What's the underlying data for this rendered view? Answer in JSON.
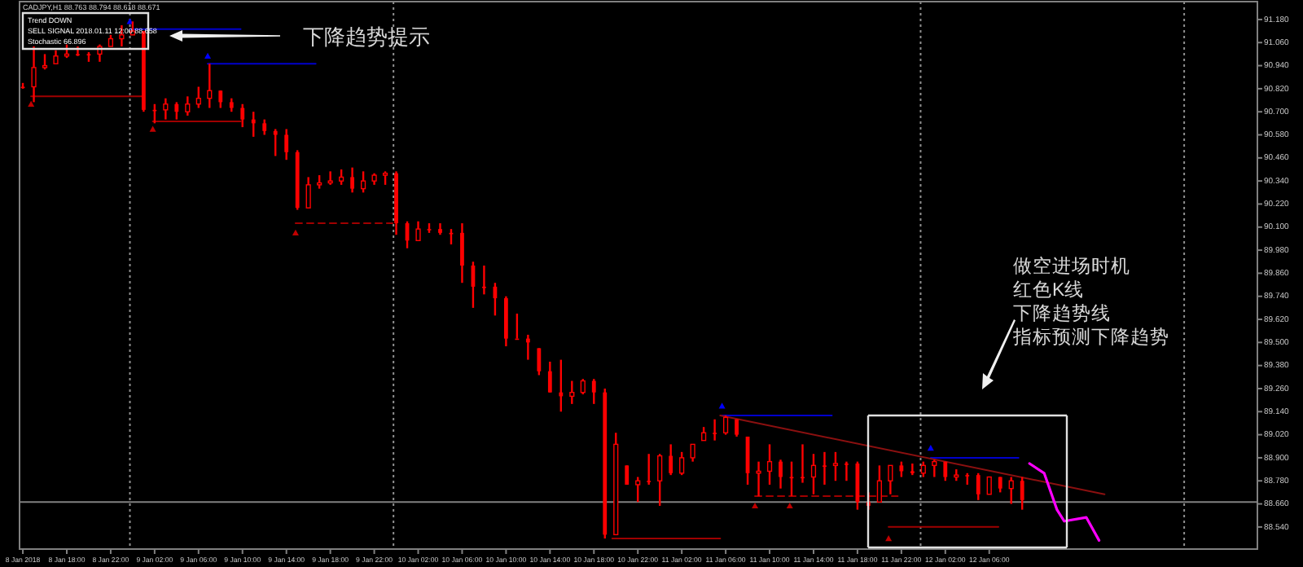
{
  "chart_data": {
    "type": "candlestick",
    "title": "CADJPY,H1 88.763 88.794 88.618 88.671",
    "color": "#ff0000",
    "x": [
      "2018-01-08T14:00",
      "2018-01-08T15:00",
      "2018-01-08T16:00",
      "2018-01-08T17:00",
      "2018-01-08T18:00",
      "2018-01-08T19:00",
      "2018-01-08T20:00",
      "2018-01-08T21:00",
      "2018-01-08T22:00",
      "2018-01-08T23:00",
      "2018-01-09T00:00",
      "2018-01-09T01:00",
      "2018-01-09T02:00",
      "2018-01-09T03:00",
      "2018-01-09T04:00",
      "2018-01-09T05:00",
      "2018-01-09T06:00",
      "2018-01-09T07:00",
      "2018-01-09T08:00",
      "2018-01-09T09:00",
      "2018-01-09T10:00",
      "2018-01-09T11:00",
      "2018-01-09T12:00",
      "2018-01-09T13:00",
      "2018-01-09T14:00",
      "2018-01-09T15:00",
      "2018-01-09T16:00",
      "2018-01-09T17:00",
      "2018-01-09T18:00",
      "2018-01-09T19:00",
      "2018-01-09T20:00",
      "2018-01-09T21:00",
      "2018-01-09T22:00",
      "2018-01-09T23:00",
      "2018-01-10T00:00",
      "2018-01-10T01:00",
      "2018-01-10T02:00",
      "2018-01-10T03:00",
      "2018-01-10T04:00",
      "2018-01-10T05:00",
      "2018-01-10T06:00",
      "2018-01-10T07:00",
      "2018-01-10T08:00",
      "2018-01-10T09:00",
      "2018-01-10T10:00",
      "2018-01-10T11:00",
      "2018-01-10T12:00",
      "2018-01-10T13:00",
      "2018-01-10T14:00",
      "2018-01-10T15:00",
      "2018-01-10T16:00",
      "2018-01-10T17:00",
      "2018-01-10T18:00",
      "2018-01-10T19:00",
      "2018-01-10T20:00",
      "2018-01-10T21:00",
      "2018-01-10T22:00",
      "2018-01-10T23:00",
      "2018-01-11T00:00",
      "2018-01-11T01:00",
      "2018-01-11T02:00",
      "2018-01-11T03:00",
      "2018-01-11T04:00",
      "2018-01-11T05:00",
      "2018-01-11T06:00",
      "2018-01-11T07:00",
      "2018-01-11T08:00",
      "2018-01-11T09:00",
      "2018-01-11T10:00",
      "2018-01-11T11:00",
      "2018-01-11T12:00",
      "2018-01-11T13:00",
      "2018-01-11T14:00",
      "2018-01-11T15:00",
      "2018-01-11T16:00",
      "2018-01-11T17:00",
      "2018-01-11T18:00",
      "2018-01-11T19:00",
      "2018-01-11T20:00",
      "2018-01-11T21:00",
      "2018-01-11T22:00",
      "2018-01-11T23:00",
      "2018-01-12T00:00",
      "2018-01-12T01:00",
      "2018-01-12T02:00",
      "2018-01-12T03:00",
      "2018-01-12T04:00",
      "2018-01-12T05:00",
      "2018-01-12T06:00",
      "2018-01-12T07:00",
      "2018-01-12T08:00",
      "2018-01-12T09:00"
    ],
    "ohlc": [
      [
        90.83,
        90.85,
        90.82,
        90.83
      ],
      [
        90.83,
        91.04,
        90.75,
        90.93
      ],
      [
        90.93,
        91.0,
        90.92,
        90.94
      ],
      [
        90.95,
        91.02,
        90.95,
        90.99
      ],
      [
        90.99,
        91.05,
        90.98,
        91.0
      ],
      [
        91.0,
        91.04,
        90.99,
        91.0
      ],
      [
        91.0,
        91.01,
        90.96,
        91.0
      ],
      [
        91.0,
        91.05,
        90.96,
        91.04
      ],
      [
        91.04,
        91.1,
        91.04,
        91.08
      ],
      [
        91.08,
        91.15,
        91.04,
        91.1
      ],
      [
        91.1,
        91.17,
        91.1,
        91.12
      ],
      [
        91.12,
        91.12,
        90.7,
        90.71
      ],
      [
        90.71,
        90.74,
        90.64,
        90.71
      ],
      [
        90.71,
        90.77,
        90.66,
        90.74
      ],
      [
        90.74,
        90.75,
        90.66,
        90.7
      ],
      [
        90.7,
        90.78,
        90.68,
        90.74
      ],
      [
        90.74,
        90.83,
        90.72,
        90.77
      ],
      [
        90.77,
        90.95,
        90.72,
        90.81
      ],
      [
        90.81,
        90.81,
        90.72,
        90.75
      ],
      [
        90.75,
        90.77,
        90.7,
        90.72
      ],
      [
        90.72,
        90.74,
        90.62,
        90.66
      ],
      [
        90.66,
        90.7,
        90.57,
        90.64
      ],
      [
        90.64,
        90.66,
        90.58,
        90.6
      ],
      [
        90.6,
        90.61,
        90.47,
        90.58
      ],
      [
        90.58,
        90.61,
        90.45,
        90.49
      ],
      [
        90.49,
        90.5,
        90.19,
        90.2
      ],
      [
        90.2,
        90.36,
        90.2,
        90.32
      ],
      [
        90.32,
        90.37,
        90.3,
        90.33
      ],
      [
        90.33,
        90.39,
        90.32,
        90.34
      ],
      [
        90.34,
        90.4,
        90.32,
        90.36
      ],
      [
        90.36,
        90.41,
        90.28,
        90.3
      ],
      [
        90.3,
        90.39,
        90.28,
        90.34
      ],
      [
        90.34,
        90.38,
        90.32,
        90.37
      ],
      [
        90.37,
        90.39,
        90.32,
        90.38
      ],
      [
        90.38,
        90.39,
        90.06,
        90.12
      ],
      [
        90.12,
        90.13,
        89.99,
        90.03
      ],
      [
        90.03,
        90.13,
        90.03,
        90.09
      ],
      [
        90.09,
        90.12,
        90.07,
        90.09
      ],
      [
        90.09,
        90.12,
        90.06,
        90.07
      ],
      [
        90.07,
        90.09,
        90.01,
        90.07
      ],
      [
        90.07,
        90.12,
        89.81,
        89.9
      ],
      [
        89.9,
        89.92,
        89.68,
        89.79
      ],
      [
        89.79,
        89.9,
        89.75,
        89.79
      ],
      [
        89.79,
        89.81,
        89.64,
        89.73
      ],
      [
        89.73,
        89.74,
        89.48,
        89.52
      ],
      [
        89.52,
        89.65,
        89.52,
        89.52
      ],
      [
        89.52,
        89.54,
        89.41,
        89.5
      ],
      [
        89.47,
        89.47,
        89.33,
        89.35
      ],
      [
        89.35,
        89.4,
        89.24,
        89.24
      ],
      [
        89.24,
        89.41,
        89.14,
        89.22
      ],
      [
        89.22,
        89.3,
        89.18,
        89.24
      ],
      [
        89.24,
        89.31,
        89.23,
        89.3
      ],
      [
        89.3,
        89.31,
        89.18,
        89.24
      ],
      [
        89.24,
        89.26,
        88.48,
        88.5
      ],
      [
        88.5,
        89.03,
        88.5,
        88.97
      ],
      [
        88.86,
        88.86,
        88.76,
        88.76
      ],
      [
        88.76,
        88.8,
        88.67,
        88.78
      ],
      [
        88.78,
        88.92,
        88.76,
        88.78
      ],
      [
        88.78,
        88.92,
        88.65,
        88.91
      ],
      [
        88.91,
        88.97,
        88.81,
        88.82
      ],
      [
        88.82,
        88.93,
        88.81,
        88.9
      ],
      [
        88.9,
        88.97,
        88.88,
        88.97
      ],
      [
        88.99,
        89.06,
        88.99,
        89.03
      ],
      [
        89.03,
        89.1,
        88.99,
        89.03
      ],
      [
        89.03,
        89.12,
        89.02,
        89.11
      ],
      [
        89.1,
        89.1,
        89.01,
        89.02
      ],
      [
        89.01,
        89.01,
        88.76,
        88.82
      ],
      [
        88.82,
        88.88,
        88.7,
        88.83
      ],
      [
        88.83,
        88.97,
        88.76,
        88.88
      ],
      [
        88.88,
        88.89,
        88.74,
        88.8
      ],
      [
        88.8,
        88.88,
        88.7,
        88.8
      ],
      [
        88.8,
        88.97,
        88.77,
        88.8
      ],
      [
        88.8,
        88.92,
        88.71,
        88.86
      ],
      [
        88.86,
        88.93,
        88.76,
        88.86
      ],
      [
        88.86,
        88.93,
        88.78,
        88.87
      ],
      [
        88.87,
        88.88,
        88.78,
        88.87
      ],
      [
        88.87,
        88.88,
        88.63,
        88.67
      ],
      [
        88.67,
        88.72,
        88.63,
        88.65
      ],
      [
        88.67,
        88.86,
        88.67,
        88.78
      ],
      [
        88.78,
        88.86,
        88.71,
        88.86
      ],
      [
        88.86,
        88.88,
        88.8,
        88.83
      ],
      [
        88.83,
        88.87,
        88.81,
        88.82
      ],
      [
        88.82,
        88.88,
        88.8,
        88.86
      ],
      [
        88.86,
        88.89,
        88.8,
        88.88
      ],
      [
        88.88,
        88.88,
        88.78,
        88.8
      ],
      [
        88.8,
        88.84,
        88.78,
        88.81
      ],
      [
        88.81,
        88.82,
        88.76,
        88.81
      ],
      [
        88.81,
        88.82,
        88.68,
        88.71
      ],
      [
        88.71,
        88.8,
        88.71,
        88.8
      ],
      [
        88.8,
        88.8,
        88.72,
        88.74
      ],
      [
        88.74,
        88.8,
        88.66,
        88.78
      ],
      [
        88.78,
        88.8,
        88.63,
        88.68
      ]
    ],
    "series": [
      {
        "type": "line",
        "color": "#0000cc",
        "x": [
          "2018-01-08T23:45",
          "2018-01-09T09:50"
        ],
        "values": [
          91.13,
          91.13
        ]
      },
      {
        "type": "line",
        "color": "#0000cc",
        "x": [
          "2018-01-09T06:50",
          "2018-01-09T16:40"
        ],
        "values": [
          90.95,
          90.95
        ]
      },
      {
        "type": "line",
        "color": "#0000cc",
        "x": [
          "2018-01-11T05:40",
          "2018-01-11T15:40"
        ],
        "values": [
          89.12,
          89.12
        ]
      },
      {
        "type": "line",
        "color": "#0000cc",
        "x": [
          "2018-01-12T00:40",
          "2018-01-12T08:40"
        ],
        "values": [
          88.9,
          88.9
        ]
      },
      {
        "type": "line",
        "color": "#a00000",
        "x": [
          "2018-01-08T14:45",
          "2018-01-09T00:50"
        ],
        "values": [
          90.78,
          90.78
        ]
      },
      {
        "type": "line",
        "color": "#a00000",
        "x": [
          "2018-01-09T01:50",
          "2018-01-09T09:50"
        ],
        "values": [
          90.65,
          90.65
        ]
      },
      {
        "type": "line",
        "color": "#a00000",
        "line_style": "dashed",
        "x": [
          "2018-01-09T14:50",
          "2018-01-09T23:40"
        ],
        "values": [
          90.12,
          90.12
        ]
      },
      {
        "type": "line",
        "color": "#a00000",
        "x": [
          "2018-01-10T19:40",
          "2018-01-11T05:30"
        ],
        "values": [
          88.48,
          88.48
        ]
      },
      {
        "type": "line",
        "color": "#a00000",
        "line_style": "dashed",
        "x": [
          "2018-01-11T08:40",
          "2018-01-11T21:40"
        ],
        "values": [
          88.7,
          88.7
        ]
      },
      {
        "type": "line",
        "color": "#a00000",
        "x": [
          "2018-01-11T20:50",
          "2018-01-12T06:50"
        ],
        "values": [
          88.54,
          88.54
        ]
      },
      {
        "type": "line",
        "color": "#8b1010",
        "x": [
          "2018-01-11T05:30",
          "2018-01-12T16:30"
        ],
        "values": [
          89.12,
          88.71
        ]
      },
      {
        "type": "line",
        "color": "#ff00ff",
        "x": [
          "2018-01-12T09:40",
          "2018-01-12T11:00",
          "2018-01-12T12:10",
          "2018-01-12T12:50",
          "2018-01-12T14:50",
          "2018-01-12T16:00"
        ],
        "values": [
          88.87,
          88.82,
          88.63,
          88.57,
          88.59,
          88.47
        ]
      },
      {
        "type": "scatter",
        "marker": "triangle",
        "color": "#0000ff",
        "x": [
          "2018-01-08T23:45",
          "2018-01-09T06:50",
          "2018-01-11T05:40",
          "2018-01-12T00:40"
        ],
        "values": [
          91.17,
          90.99,
          89.17,
          88.95
        ]
      },
      {
        "type": "scatter",
        "marker": "triangle",
        "color": "#c00000",
        "x": [
          "2018-01-08T14:45",
          "2018-01-09T01:50",
          "2018-01-09T14:50",
          "2018-01-11T08:40",
          "2018-01-11T11:50",
          "2018-01-11T20:50"
        ],
        "values": [
          90.74,
          90.61,
          90.07,
          88.65,
          88.65,
          88.48
        ]
      }
    ],
    "xlim": [
      "2018-01-08T13:42",
      "2018-01-13T06:25"
    ],
    "xticks": [
      {
        "value": "2018-01-08T14:00",
        "label": "8 Jan 2018"
      },
      {
        "value": "2018-01-08T18:00",
        "label": "8 Jan 18:00"
      },
      {
        "value": "2018-01-08T22:00",
        "label": "8 Jan 22:00"
      },
      {
        "value": "2018-01-09T02:00",
        "label": "9 Jan 02:00"
      },
      {
        "value": "2018-01-09T06:00",
        "label": "9 Jan 06:00"
      },
      {
        "value": "2018-01-09T10:00",
        "label": "9 Jan 10:00"
      },
      {
        "value": "2018-01-09T14:00",
        "label": "9 Jan 14:00"
      },
      {
        "value": "2018-01-09T18:00",
        "label": "9 Jan 18:00"
      },
      {
        "value": "2018-01-09T22:00",
        "label": "9 Jan 22:00"
      },
      {
        "value": "2018-01-10T02:00",
        "label": "10 Jan 02:00"
      },
      {
        "value": "2018-01-10T06:00",
        "label": "10 Jan 06:00"
      },
      {
        "value": "2018-01-10T10:00",
        "label": "10 Jan 10:00"
      },
      {
        "value": "2018-01-10T14:00",
        "label": "10 Jan 14:00"
      },
      {
        "value": "2018-01-10T18:00",
        "label": "10 Jan 18:00"
      },
      {
        "value": "2018-01-10T22:00",
        "label": "10 Jan 22:00"
      },
      {
        "value": "2018-01-11T02:00",
        "label": "11 Jan 02:00"
      },
      {
        "value": "2018-01-11T06:00",
        "label": "11 Jan 06:00"
      },
      {
        "value": "2018-01-11T10:00",
        "label": "11 Jan 10:00"
      },
      {
        "value": "2018-01-11T14:00",
        "label": "11 Jan 14:00"
      },
      {
        "value": "2018-01-11T18:00",
        "label": "11 Jan 18:00"
      },
      {
        "value": "2018-01-11T22:00",
        "label": "11 Jan 22:00"
      },
      {
        "value": "2018-01-12T02:00",
        "label": "12 Jan 02:00"
      },
      {
        "value": "2018-01-12T06:00",
        "label": "12 Jan 06:00"
      }
    ],
    "ylim": [
      88.425,
      91.273
    ],
    "yticks": [
      {
        "value": 88.54,
        "label": "88.540"
      },
      {
        "value": 88.66,
        "label": "88.660"
      },
      {
        "value": 88.78,
        "label": "88.780"
      },
      {
        "value": 88.9,
        "label": "88.900"
      },
      {
        "value": 89.02,
        "label": "89.020"
      },
      {
        "value": 89.14,
        "label": "89.140"
      },
      {
        "value": 89.26,
        "label": "89.260"
      },
      {
        "value": 89.38,
        "label": "89.380"
      },
      {
        "value": 89.5,
        "label": "89.500"
      },
      {
        "value": 89.62,
        "label": "89.620"
      },
      {
        "value": 89.74,
        "label": "89.740"
      },
      {
        "value": 89.86,
        "label": "89.860"
      },
      {
        "value": 89.98,
        "label": "89.980"
      },
      {
        "value": 90.1,
        "label": "90.100"
      },
      {
        "value": 90.22,
        "label": "90.220"
      },
      {
        "value": 90.34,
        "label": "90.340"
      },
      {
        "value": 90.46,
        "label": "90.460"
      },
      {
        "value": 90.58,
        "label": "90.580"
      },
      {
        "value": 90.7,
        "label": "90.700"
      },
      {
        "value": 90.82,
        "label": "90.820"
      },
      {
        "value": 90.94,
        "label": "90.940"
      },
      {
        "value": 91.06,
        "label": "91.060"
      },
      {
        "value": 91.18,
        "label": "91.180"
      }
    ],
    "ref_lines": [
      {
        "axis": "x",
        "value": "2018-01-08T23:45",
        "color": "#909090",
        "line_style": "dotted"
      },
      {
        "axis": "x",
        "value": "2018-01-09T23:45",
        "color": "#909090",
        "line_style": "dotted"
      },
      {
        "axis": "x",
        "value": "2018-01-11T23:45",
        "color": "#909090",
        "line_style": "dotted"
      },
      {
        "axis": "x",
        "value": "2018-01-12T23:45",
        "color": "#909090",
        "line_style": "dotted"
      },
      {
        "axis": "y",
        "value": 88.67,
        "color": "#808080"
      }
    ],
    "annotations": [
      "Trend DOWN",
      "SELL SIGNAL 2018.01.11 12:00 88.658",
      "Stochastic 66.896",
      "下降趋势提示",
      "做空进场时机",
      "红色K线",
      "下降趋势线",
      "指标预测下降趋势"
    ]
  }
}
